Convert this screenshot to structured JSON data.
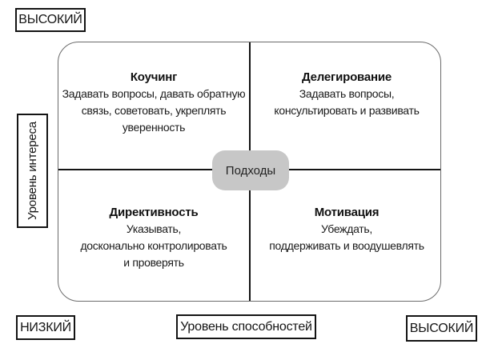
{
  "colors": {
    "frame_border": "#6b6b6b",
    "divider": "#141414",
    "label_border": "#141414",
    "badge_bg": "#c7c7c7",
    "text": "#1a1a1a",
    "background": "#ffffff"
  },
  "axis": {
    "y_top_label": "ВЫСОКИЙ",
    "y_axis_label": "Уровень интереса",
    "y_bottom_label": "НИЗКИЙ",
    "x_axis_label": "Уровень способностей",
    "x_right_label": "ВЫСОКИЙ"
  },
  "center_badge": "Подходы",
  "quadrants": [
    {
      "position": "top-left",
      "title": "Коучинг",
      "body": [
        "Задавать вопросы, давать обратную",
        "связь, советовать, укреплять",
        "уверенность"
      ]
    },
    {
      "position": "top-right",
      "title": "Делегирование",
      "body": [
        "Задавать вопросы,",
        "консультировать и развивать"
      ]
    },
    {
      "position": "bottom-left",
      "title": "Директивность",
      "body": [
        "Указывать,",
        "досконально контролировать",
        "и проверять"
      ]
    },
    {
      "position": "bottom-right",
      "title": "Мотивация",
      "body": [
        "Убеждать,",
        "поддерживать и воодушевлять"
      ]
    }
  ]
}
